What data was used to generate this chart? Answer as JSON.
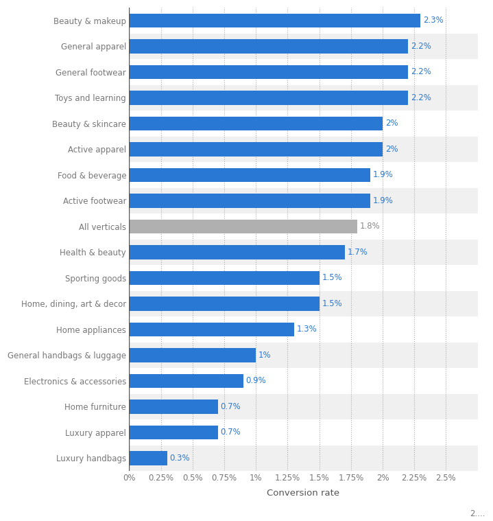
{
  "categories": [
    "Luxury handbags",
    "Luxury apparel",
    "Home furniture",
    "Electronics & accessories",
    "General handbags & luggage",
    "Home appliances",
    "Home, dining, art & decor",
    "Sporting goods",
    "Health & beauty",
    "All verticals",
    "Active footwear",
    "Food & beverage",
    "Active apparel",
    "Beauty & skincare",
    "Toys and learning",
    "General footwear",
    "General apparel",
    "Beauty & makeup"
  ],
  "values": [
    0.3,
    0.7,
    0.7,
    0.9,
    1.0,
    1.3,
    1.5,
    1.5,
    1.7,
    1.8,
    1.9,
    1.9,
    2.0,
    2.0,
    2.2,
    2.2,
    2.2,
    2.3
  ],
  "labels": [
    "0.3%",
    "0.7%",
    "0.7%",
    "0.9%",
    "1%",
    "1.3%",
    "1.5%",
    "1.5%",
    "1.7%",
    "1.8%",
    "1.9%",
    "1.9%",
    "2%",
    "2%",
    "2.2%",
    "2.2%",
    "2.2%",
    "2.3%"
  ],
  "bar_colors": [
    "#2979d4",
    "#2979d4",
    "#2979d4",
    "#2979d4",
    "#2979d4",
    "#2979d4",
    "#2979d4",
    "#2979d4",
    "#2979d4",
    "#b0b0b0",
    "#2979d4",
    "#2979d4",
    "#2979d4",
    "#2979d4",
    "#2979d4",
    "#2979d4",
    "#2979d4",
    "#2979d4"
  ],
  "label_colors": [
    "#2979d4",
    "#2979d4",
    "#2979d4",
    "#2979d4",
    "#2979d4",
    "#2979d4",
    "#2979d4",
    "#2979d4",
    "#2979d4",
    "#888888",
    "#2979d4",
    "#2979d4",
    "#2979d4",
    "#2979d4",
    "#2979d4",
    "#2979d4",
    "#2979d4",
    "#2979d4"
  ],
  "ytick_colors": [
    "#555555",
    "#555555",
    "#c07030",
    "#555555",
    "#555555",
    "#555555",
    "#555555",
    "#555555",
    "#555555",
    "#555555",
    "#555555",
    "#555555",
    "#555555",
    "#555555",
    "#555555",
    "#555555",
    "#555555",
    "#555555"
  ],
  "xlabel": "Conversion rate",
  "xlim": [
    0,
    2.75
  ],
  "xtick_vals": [
    0,
    0.25,
    0.5,
    0.75,
    1.0,
    1.25,
    1.5,
    1.75,
    2.0,
    2.25,
    2.5
  ],
  "xtick_labels": [
    "0%",
    "0.25%",
    "0.5%",
    "0.75%",
    "1%",
    "1.25%",
    "1.5%",
    "1.75%",
    "2%",
    "2.25%",
    "2.5%"
  ],
  "last_xtick_label": "2....",
  "background_color": "#ffffff",
  "bar_height": 0.55,
  "row_bg_even": "#f0f0f0",
  "row_bg_odd": "#ffffff",
  "label_fontsize": 8.5,
  "ytick_fontsize": 8.5,
  "xtick_fontsize": 8.5,
  "xlabel_fontsize": 9.5
}
